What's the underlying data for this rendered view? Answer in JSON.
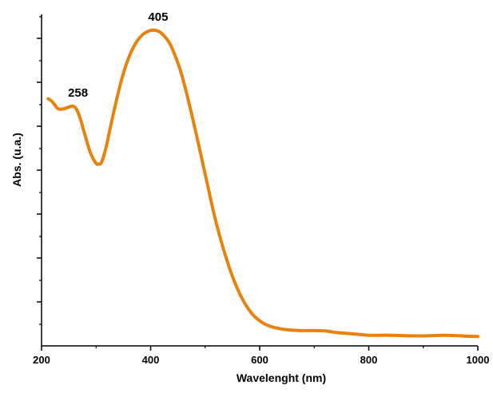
{
  "chart_data": {
    "type": "line",
    "title": "",
    "xlabel": "Wavelenght (nm)",
    "ylabel": "Abs. (u.a.)",
    "xlim": [
      200,
      1000
    ],
    "ylim": [
      0,
      1
    ],
    "x_ticks": [
      200,
      400,
      600,
      800,
      1000
    ],
    "x_tick_labels": [
      "200",
      "400",
      "600",
      "800",
      "1000"
    ],
    "y_tick_labels_shown": false,
    "grid": false,
    "legend": "none",
    "series": [
      {
        "color": "#E8820C",
        "x": [
          212,
          220,
          230,
          240,
          250,
          258,
          265,
          272,
          280,
          290,
          300,
          305,
          310,
          318,
          325,
          335,
          345,
          355,
          365,
          375,
          385,
          395,
          405,
          415,
          425,
          435,
          445,
          455,
          465,
          475,
          485,
          495,
          505,
          515,
          525,
          535,
          545,
          555,
          565,
          575,
          585,
          595,
          605,
          615,
          625,
          635,
          645,
          655,
          665,
          680,
          700,
          720,
          740,
          760,
          780,
          800,
          820,
          840,
          860,
          880,
          900,
          920,
          940,
          960,
          980,
          1000
        ],
        "y": [
          0.775,
          0.765,
          0.743,
          0.742,
          0.748,
          0.751,
          0.738,
          0.705,
          0.655,
          0.598,
          0.565,
          0.563,
          0.568,
          0.615,
          0.672,
          0.752,
          0.825,
          0.885,
          0.93,
          0.962,
          0.983,
          0.994,
          0.998,
          0.994,
          0.979,
          0.955,
          0.915,
          0.865,
          0.8,
          0.727,
          0.65,
          0.57,
          0.49,
          0.41,
          0.34,
          0.278,
          0.222,
          0.175,
          0.135,
          0.103,
          0.078,
          0.06,
          0.047,
          0.038,
          0.032,
          0.028,
          0.025,
          0.023,
          0.022,
          0.021,
          0.021,
          0.02,
          0.015,
          0.012,
          0.009,
          0.006,
          0.006,
          0.006,
          0.005,
          0.004,
          0.004,
          0.005,
          0.006,
          0.005,
          0.003,
          0.002
        ]
      }
    ],
    "annotations": [
      {
        "text": "258",
        "x": 258,
        "y": 0.751
      },
      {
        "text": "405",
        "x": 405,
        "y": 0.998
      }
    ]
  }
}
